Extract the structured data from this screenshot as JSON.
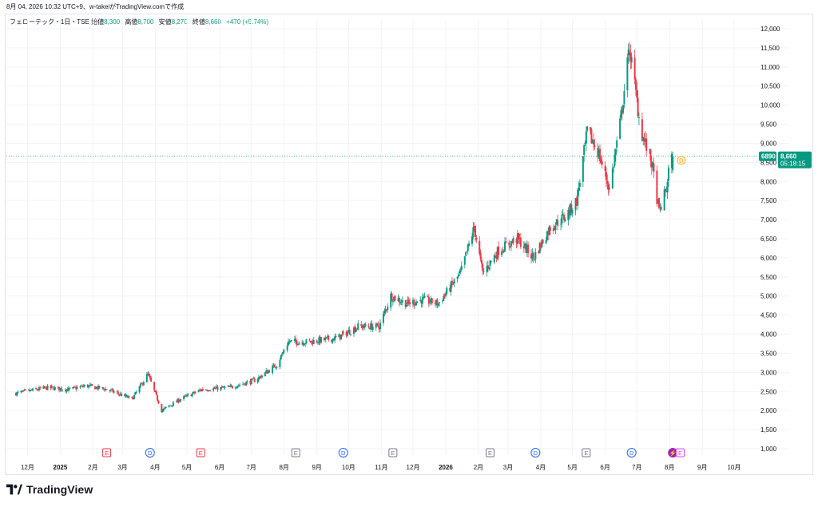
{
  "snapshot_caption": "8月 04, 2026 10:32 UTC+9、w-takeiがTradingView.comで作成",
  "legend": {
    "symbol": "フェローテック・1日・TSE",
    "open_label": "始値",
    "open": "8,300",
    "high_label": "高値",
    "high": "8,700",
    "low_label": "安値",
    "low": "8,270",
    "close_label": "終値",
    "close": "8,660",
    "change": "+470 (+5.74%)"
  },
  "price_tag": {
    "ticker": "6890",
    "price": "8,660",
    "countdown": "05:18:15"
  },
  "brand": {
    "name": "TradingView"
  },
  "colors": {
    "up": "#089981",
    "down": "#f23645",
    "earnings": "#f23645",
    "dividend": "#2962ff",
    "neutral": "#787b86"
  },
  "chart_data": {
    "type": "candlestick",
    "y_axis": {
      "min": 1000,
      "max": 12000,
      "side": "right"
    },
    "y_ticks": [
      "12,000",
      "11,500",
      "11,000",
      "10,500",
      "10,000",
      "9,500",
      "9,000",
      "8,500",
      "8,000",
      "7,500",
      "7,000",
      "6,500",
      "6,000",
      "5,500",
      "5,000",
      "4,500",
      "4,000",
      "3,500",
      "3,000",
      "2,500",
      "2,000",
      "1,500",
      "1,000"
    ],
    "x_ticks": [
      {
        "label": "12月",
        "date": "2024-12-01",
        "bold": false
      },
      {
        "label": "2025",
        "date": "2025-01-01",
        "bold": true
      },
      {
        "label": "2月",
        "date": "2025-02-01",
        "bold": false
      },
      {
        "label": "3月",
        "date": "2025-03-01",
        "bold": false
      },
      {
        "label": "4月",
        "date": "2025-04-01",
        "bold": false
      },
      {
        "label": "5月",
        "date": "2025-05-01",
        "bold": false
      },
      {
        "label": "6月",
        "date": "2025-06-01",
        "bold": false
      },
      {
        "label": "7月",
        "date": "2025-07-01",
        "bold": false
      },
      {
        "label": "8月",
        "date": "2025-08-01",
        "bold": false
      },
      {
        "label": "9月",
        "date": "2025-09-01",
        "bold": false
      },
      {
        "label": "10月",
        "date": "2025-10-01",
        "bold": false
      },
      {
        "label": "11月",
        "date": "2025-11-01",
        "bold": false
      },
      {
        "label": "12月",
        "date": "2025-12-01",
        "bold": false
      },
      {
        "label": "2026",
        "date": "2026-01-01",
        "bold": true
      },
      {
        "label": "2月",
        "date": "2026-02-01",
        "bold": false
      },
      {
        "label": "3月",
        "date": "2026-03-01",
        "bold": false
      },
      {
        "label": "4月",
        "date": "2026-04-01",
        "bold": false
      },
      {
        "label": "5月",
        "date": "2026-05-01",
        "bold": false
      },
      {
        "label": "6月",
        "date": "2026-06-01",
        "bold": false
      },
      {
        "label": "7月",
        "date": "2026-07-01",
        "bold": false
      },
      {
        "label": "8月",
        "date": "2026-08-01",
        "bold": false
      },
      {
        "label": "9月",
        "date": "2026-09-01",
        "bold": false
      },
      {
        "label": "10月",
        "date": "2026-10-01",
        "bold": false
      }
    ],
    "last_price": 8660,
    "markers": [
      {
        "kind": "E",
        "date": "2025-02-14",
        "color": "#f23645"
      },
      {
        "kind": "D",
        "date": "2025-03-27",
        "color": "#2962ff"
      },
      {
        "kind": "E",
        "date": "2025-05-14",
        "color": "#f23645"
      },
      {
        "kind": "E",
        "date": "2025-08-12",
        "color": "#787b86"
      },
      {
        "kind": "D",
        "date": "2025-09-26",
        "color": "#2962ff"
      },
      {
        "kind": "E",
        "date": "2025-11-12",
        "color": "#787b86"
      },
      {
        "kind": "E",
        "date": "2026-02-12",
        "color": "#787b86"
      },
      {
        "kind": "D",
        "date": "2026-03-27",
        "color": "#2962ff"
      },
      {
        "kind": "E",
        "date": "2026-05-14",
        "color": "#787b86"
      },
      {
        "kind": "D",
        "date": "2026-06-26",
        "color": "#2962ff"
      },
      {
        "kind": "⚡",
        "date": "2026-08-04",
        "color": "#9c27b0"
      },
      {
        "kind": "E",
        "date": "2026-08-11",
        "color": "#e040fb"
      }
    ],
    "future_marker": {
      "kind": "D",
      "date": "2026-08-12",
      "color": "#ff9800"
    },
    "price_path": [
      {
        "date": "2024-11-20",
        "close": 2450
      },
      {
        "date": "2024-12-20",
        "close": 2600
      },
      {
        "date": "2025-01-10",
        "close": 2550
      },
      {
        "date": "2025-01-25",
        "close": 2650
      },
      {
        "date": "2025-02-15",
        "close": 2550
      },
      {
        "date": "2025-03-10",
        "close": 2300
      },
      {
        "date": "2025-03-25",
        "close": 2950
      },
      {
        "date": "2025-04-07",
        "close": 2000
      },
      {
        "date": "2025-04-25",
        "close": 2300
      },
      {
        "date": "2025-05-15",
        "close": 2550
      },
      {
        "date": "2025-06-10",
        "close": 2600
      },
      {
        "date": "2025-07-05",
        "close": 2800
      },
      {
        "date": "2025-07-25",
        "close": 3200
      },
      {
        "date": "2025-08-05",
        "close": 3800
      },
      {
        "date": "2025-08-25",
        "close": 3800
      },
      {
        "date": "2025-09-20",
        "close": 3900
      },
      {
        "date": "2025-10-10",
        "close": 4200
      },
      {
        "date": "2025-10-30",
        "close": 4200
      },
      {
        "date": "2025-11-10",
        "close": 5000
      },
      {
        "date": "2025-11-25",
        "close": 4800
      },
      {
        "date": "2025-12-10",
        "close": 4900
      },
      {
        "date": "2025-12-25",
        "close": 4800
      },
      {
        "date": "2026-01-15",
        "close": 5600
      },
      {
        "date": "2026-01-28",
        "close": 6800
      },
      {
        "date": "2026-02-05",
        "close": 5600
      },
      {
        "date": "2026-02-20",
        "close": 6200
      },
      {
        "date": "2026-03-10",
        "close": 6500
      },
      {
        "date": "2026-03-25",
        "close": 6000
      },
      {
        "date": "2026-04-10",
        "close": 6800
      },
      {
        "date": "2026-04-25",
        "close": 7100
      },
      {
        "date": "2026-05-05",
        "close": 7500
      },
      {
        "date": "2026-05-15",
        "close": 9300
      },
      {
        "date": "2026-05-25",
        "close": 8800
      },
      {
        "date": "2026-06-05",
        "close": 7800
      },
      {
        "date": "2026-06-15",
        "close": 9500
      },
      {
        "date": "2026-06-24",
        "close": 11500
      },
      {
        "date": "2026-07-05",
        "close": 9300
      },
      {
        "date": "2026-07-15",
        "close": 8500
      },
      {
        "date": "2026-07-22",
        "close": 7200
      },
      {
        "date": "2026-07-29",
        "close": 7800
      },
      {
        "date": "2026-07-31",
        "close": 8300
      },
      {
        "date": "2026-08-04",
        "close": 8660
      }
    ]
  }
}
